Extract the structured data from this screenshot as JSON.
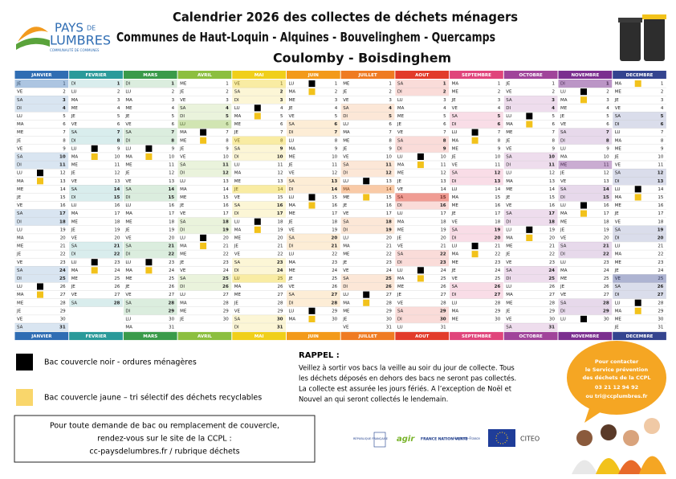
{
  "logo": {
    "line1": "PAYS",
    "line2": "DE",
    "line3": "LUMBRES",
    "tagline": "COMMUNAUTÉ DE COMMUNES"
  },
  "title": [
    "Calendrier 2026 des collectes de déchets ménagers",
    "Communes de Haut-Loquin - Alquines - Bouvelinghem - Quercamps",
    "Coulomby - Boisdinghem"
  ],
  "calendar": {
    "day_numbers": [
      1,
      2,
      3,
      4,
      5,
      6,
      7,
      8,
      9,
      10,
      11,
      12,
      13,
      14,
      15,
      16,
      17,
      18,
      19,
      20,
      21,
      22,
      23,
      24,
      25,
      26,
      27,
      28,
      29,
      30,
      31
    ],
    "weekend": [
      "SA",
      "DI"
    ],
    "black_color": "#000000",
    "yellow_color": "#f2c21b",
    "months": [
      {
        "name": "JANVIER",
        "color": "#2f6db3",
        "days": [
          "JE",
          "VE",
          "SA",
          "DI",
          "LU",
          "MA",
          "ME",
          "JE",
          "VE",
          "SA",
          "DI",
          "LU",
          "MA",
          "ME",
          "JE",
          "VE",
          "SA",
          "DI",
          "LU",
          "MA",
          "ME",
          "JE",
          "VE",
          "SA",
          "DI",
          "LU",
          "MA",
          "ME",
          "JE",
          "VE",
          "SA"
        ],
        "black": [
          12,
          26
        ],
        "yellow": [
          13,
          27
        ],
        "holidays": [
          1
        ]
      },
      {
        "name": "FEVRIER",
        "color": "#2a9a9a",
        "days": [
          "DI",
          "LU",
          "MA",
          "ME",
          "JE",
          "VE",
          "SA",
          "DI",
          "LU",
          "MA",
          "ME",
          "JE",
          "VE",
          "SA",
          "DI",
          "LU",
          "MA",
          "ME",
          "JE",
          "VE",
          "SA",
          "DI",
          "LU",
          "MA",
          "ME",
          "JE",
          "VE",
          "SA"
        ],
        "black": [
          9,
          23
        ],
        "yellow": [
          10,
          24
        ],
        "holidays": []
      },
      {
        "name": "MARS",
        "color": "#3a9a4a",
        "days": [
          "DI",
          "LU",
          "MA",
          "ME",
          "JE",
          "VE",
          "SA",
          "DI",
          "LU",
          "MA",
          "ME",
          "JE",
          "VE",
          "SA",
          "DI",
          "LU",
          "MA",
          "ME",
          "JE",
          "VE",
          "SA",
          "DI",
          "LU",
          "MA",
          "ME",
          "JE",
          "VE",
          "SA",
          "DI",
          "LU",
          "MA"
        ],
        "black": [
          9,
          23
        ],
        "yellow": [
          10,
          24
        ],
        "holidays": []
      },
      {
        "name": "AVRIL",
        "color": "#8cbf3f",
        "days": [
          "ME",
          "JE",
          "VE",
          "SA",
          "DI",
          "LU",
          "MA",
          "ME",
          "JE",
          "VE",
          "SA",
          "DI",
          "LU",
          "MA",
          "ME",
          "JE",
          "VE",
          "SA",
          "DI",
          "LU",
          "MA",
          "ME",
          "JE",
          "VE",
          "SA",
          "DI",
          "LU",
          "MA",
          "ME",
          "JE"
        ],
        "black": [
          7,
          20
        ],
        "yellow": [
          8,
          21
        ],
        "holidays": [
          6
        ]
      },
      {
        "name": "MAI",
        "color": "#f0cf1a",
        "days": [
          "VE",
          "SA",
          "DI",
          "LU",
          "MA",
          "ME",
          "JE",
          "VE",
          "SA",
          "DI",
          "LU",
          "MA",
          "ME",
          "JE",
          "VE",
          "SA",
          "DI",
          "LU",
          "MA",
          "ME",
          "JE",
          "VE",
          "SA",
          "DI",
          "LU",
          "MA",
          "ME",
          "JE",
          "VE",
          "SA",
          "DI"
        ],
        "black": [
          4,
          18
        ],
        "yellow": [
          5,
          19
        ],
        "holidays": [
          1,
          8,
          14,
          25
        ]
      },
      {
        "name": "JUIN",
        "color": "#f39a1a",
        "days": [
          "LU",
          "MA",
          "ME",
          "JE",
          "VE",
          "SA",
          "DI",
          "LU",
          "MA",
          "ME",
          "JE",
          "VE",
          "SA",
          "DI",
          "LU",
          "MA",
          "ME",
          "JE",
          "VE",
          "SA",
          "DI",
          "LU",
          "MA",
          "ME",
          "JE",
          "VE",
          "SA",
          "DI",
          "LU",
          "MA"
        ],
        "black": [
          1,
          15,
          29
        ],
        "yellow": [
          2,
          16,
          30
        ],
        "holidays": []
      },
      {
        "name": "JUILLET",
        "color": "#ef7b22",
        "days": [
          "ME",
          "JE",
          "VE",
          "SA",
          "DI",
          "LU",
          "MA",
          "ME",
          "JE",
          "VE",
          "SA",
          "DI",
          "LU",
          "MA",
          "ME",
          "JE",
          "VE",
          "SA",
          "DI",
          "LU",
          "MA",
          "ME",
          "JE",
          "VE",
          "SA",
          "DI",
          "LU",
          "MA",
          "ME",
          "JE",
          "VE"
        ],
        "black": [
          13,
          27
        ],
        "yellow": [
          15,
          28
        ],
        "holidays": [
          14
        ]
      },
      {
        "name": "AOUT",
        "color": "#e23b2a",
        "days": [
          "SA",
          "DI",
          "LU",
          "MA",
          "ME",
          "JE",
          "VE",
          "SA",
          "DI",
          "LU",
          "MA",
          "ME",
          "JE",
          "VE",
          "SA",
          "DI",
          "LU",
          "MA",
          "ME",
          "JE",
          "VE",
          "SA",
          "DI",
          "LU",
          "MA",
          "ME",
          "JE",
          "VE",
          "SA",
          "DI",
          "LU"
        ],
        "black": [
          10,
          24
        ],
        "yellow": [
          11,
          25
        ],
        "holidays": [
          15
        ]
      },
      {
        "name": "SEPTEMBRE",
        "color": "#e0457b",
        "days": [
          "MA",
          "ME",
          "JE",
          "VE",
          "SA",
          "DI",
          "LU",
          "MA",
          "ME",
          "JE",
          "VE",
          "SA",
          "DI",
          "LU",
          "MA",
          "ME",
          "JE",
          "VE",
          "SA",
          "DI",
          "LU",
          "MA",
          "ME",
          "JE",
          "VE",
          "SA",
          "DI",
          "LU",
          "MA",
          "ME"
        ],
        "black": [
          7,
          21
        ],
        "yellow": [
          8,
          22
        ],
        "holidays": []
      },
      {
        "name": "OCTOBRE",
        "color": "#a0449a",
        "days": [
          "JE",
          "VE",
          "SA",
          "DI",
          "LU",
          "MA",
          "ME",
          "JE",
          "VE",
          "SA",
          "DI",
          "LU",
          "MA",
          "ME",
          "JE",
          "VE",
          "SA",
          "DI",
          "LU",
          "MA",
          "ME",
          "JE",
          "VE",
          "SA",
          "DI",
          "LU",
          "MA",
          "ME",
          "JE",
          "VE",
          "SA"
        ],
        "black": [
          5,
          19
        ],
        "yellow": [
          6,
          20
        ],
        "holidays": []
      },
      {
        "name": "NOVEMBRE",
        "color": "#7b2f8f",
        "days": [
          "DI",
          "LU",
          "MA",
          "ME",
          "JE",
          "VE",
          "SA",
          "DI",
          "LU",
          "MA",
          "ME",
          "JE",
          "VE",
          "SA",
          "DI",
          "LU",
          "MA",
          "ME",
          "JE",
          "VE",
          "SA",
          "DI",
          "LU",
          "MA",
          "ME",
          "JE",
          "VE",
          "SA",
          "DI",
          "LU"
        ],
        "black": [
          2,
          16,
          30
        ],
        "yellow": [
          3,
          17
        ],
        "holidays": [
          1,
          11
        ]
      },
      {
        "name": "DECEMBRE",
        "color": "#34448f",
        "days": [
          "MA",
          "ME",
          "JE",
          "VE",
          "SA",
          "DI",
          "LU",
          "MA",
          "ME",
          "JE",
          "VE",
          "SA",
          "DI",
          "LU",
          "MA",
          "ME",
          "JE",
          "VE",
          "SA",
          "DI",
          "LU",
          "MA",
          "ME",
          "JE",
          "VE",
          "SA",
          "DI",
          "LU",
          "MA",
          "ME",
          "JE"
        ],
        "black": [
          14,
          28
        ],
        "yellow": [
          1,
          15,
          29
        ],
        "holidays": [
          25
        ]
      }
    ]
  },
  "legend": [
    {
      "label": "Bac couvercle noir - ordures ménagères",
      "color": "#000000"
    },
    {
      "label": "Bac couvercle jaune – tri sélectif des déchets recyclables",
      "color": "#f9d66b"
    }
  ],
  "rappel": {
    "title": "RAPPEL :",
    "lines": [
      "Veillez à sortir vos bacs la veille au soir du jour de collecte. Tous",
      "les déchets déposés en dehors des bacs ne seront pas collectés.",
      "La collecte est assurée les jours fériés.  A l’exception de Noël et",
      "Nouvel an qui seront collectés le lendemain."
    ]
  },
  "contact_box": [
    "Pour toute demande de bac ou remplacement de couvercle,",
    "rendez-vous sur le site de la CCPL :",
    "cc-paysdelumbres.fr / rubrique déchets"
  ],
  "bubble": [
    "Pour contacter",
    "le Service prévention",
    "des déchets de la CCPL",
    "03 21 12 94 92",
    "ou tri@ccplumbres.fr"
  ],
  "partners": [
    "RÉPUBLIQUE FRANÇAISE",
    "agir",
    "FRANCE NATION VERTE",
    "Hauts-de-France",
    "CITEO"
  ]
}
